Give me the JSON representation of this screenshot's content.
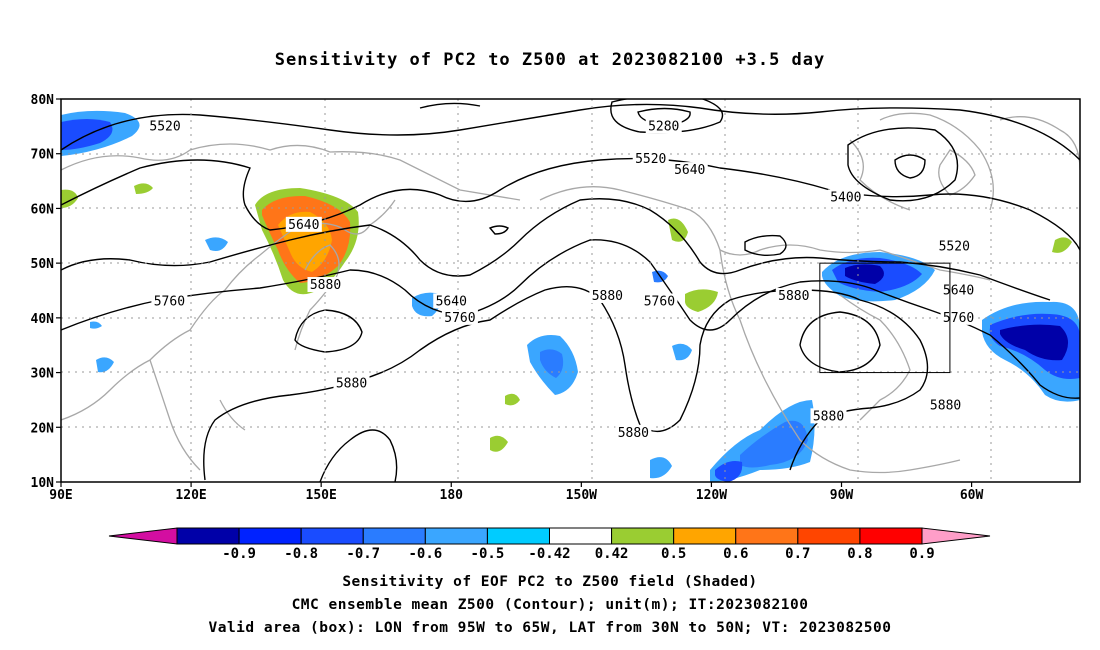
{
  "title": "Sensitivity of PC2 to Z500 at 2023082100 +3.5 day",
  "captions": [
    "Sensitivity of EOF PC2 to Z500 field (Shaded)",
    "CMC ensemble mean Z500 (Contour); unit(m); IT:2023082100",
    "Valid area (box): LON from 95W to 65W, LAT from 30N to 50N; VT: 2023082500"
  ],
  "map": {
    "lat_ticks": [
      "10N",
      "20N",
      "30N",
      "40N",
      "50N",
      "60N",
      "70N",
      "80N"
    ],
    "lon_ticks": [
      "90E",
      "120E",
      "150E",
      "180",
      "150W",
      "120W",
      "90W",
      "60W"
    ],
    "lat_range": [
      10,
      80
    ],
    "lon_range_east": [
      90,
      325
    ],
    "valid_box": {
      "lon": [
        265,
        295
      ],
      "lat": [
        30,
        50
      ]
    },
    "contour_labels": [
      {
        "text": "5520",
        "lon": 114,
        "lat": 75
      },
      {
        "text": "5280",
        "lon": 229,
        "lat": 75
      },
      {
        "text": "5520",
        "lon": 226,
        "lat": 69
      },
      {
        "text": "5640",
        "lon": 235,
        "lat": 67
      },
      {
        "text": "5400",
        "lon": 271,
        "lat": 62
      },
      {
        "text": "5520",
        "lon": 296,
        "lat": 53
      },
      {
        "text": "5640",
        "lon": 146,
        "lat": 57
      },
      {
        "text": "5760",
        "lon": 115,
        "lat": 43
      },
      {
        "text": "5880",
        "lon": 151,
        "lat": 46
      },
      {
        "text": "5640",
        "lon": 180,
        "lat": 43
      },
      {
        "text": "5760",
        "lon": 182,
        "lat": 40
      },
      {
        "text": "5880",
        "lon": 216,
        "lat": 44
      },
      {
        "text": "5760",
        "lon": 228,
        "lat": 43
      },
      {
        "text": "5880",
        "lon": 259,
        "lat": 44
      },
      {
        "text": "5640",
        "lon": 297,
        "lat": 45
      },
      {
        "text": "5760",
        "lon": 297,
        "lat": 40
      },
      {
        "text": "5880",
        "lon": 157,
        "lat": 28
      },
      {
        "text": "5880",
        "lon": 222,
        "lat": 19
      },
      {
        "text": "5880",
        "lon": 267,
        "lat": 22
      },
      {
        "text": "5880",
        "lon": 294,
        "lat": 24
      }
    ]
  },
  "colorbar": {
    "labels": [
      "-0.9",
      "-0.8",
      "-0.7",
      "-0.6",
      "-0.5",
      "-0.42",
      "0.42",
      "0.5",
      "0.6",
      "0.7",
      "0.8",
      "0.9"
    ],
    "colors": [
      "#0000a8",
      "#0022ff",
      "#1a4cff",
      "#2a7cff",
      "#3aa6ff",
      "#00ccff",
      "#ffffff",
      "#9acd32",
      "#ffa500",
      "#ff7518",
      "#ff4500",
      "#ff0000"
    ],
    "under_color": "#d30ea1",
    "over_color": "#ff9ec8"
  }
}
